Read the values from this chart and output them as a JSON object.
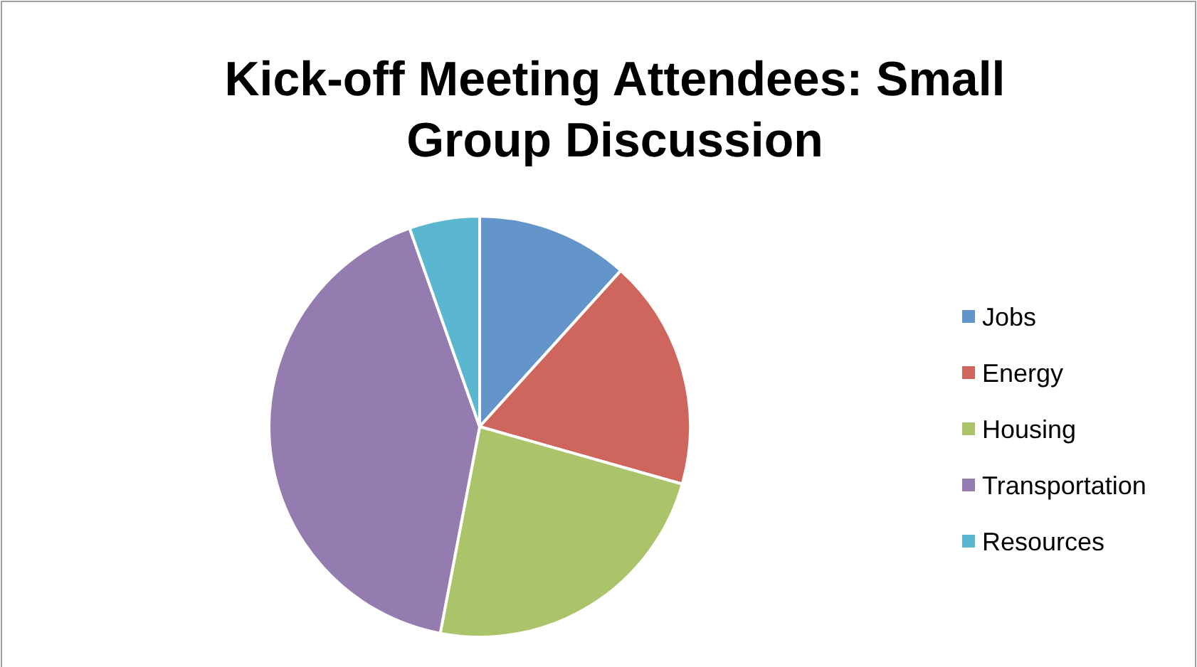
{
  "chart_data": {
    "type": "pie",
    "title": "Kick-off Meeting Attendees: Small Group Discussion",
    "categories": [
      "Jobs",
      "Energy",
      "Housing",
      "Transportation",
      "Resources"
    ],
    "values": [
      11.7,
      17.7,
      23.6,
      41.6,
      5.4
    ],
    "colors": [
      "#6495ca",
      "#cf665e",
      "#abc46a",
      "#947bb0",
      "#5ab7cf"
    ],
    "legend": "right"
  }
}
